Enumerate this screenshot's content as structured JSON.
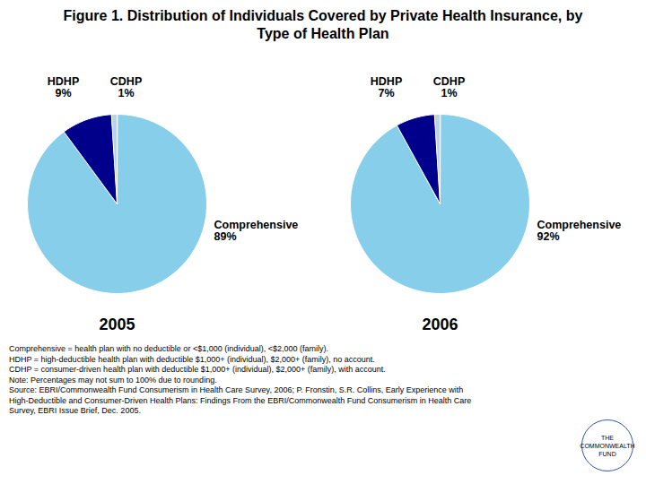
{
  "chart_data": [
    {
      "type": "pie",
      "title": "Figure 1. Distribution of Individuals Covered by Private Health Insurance, by Type of Health Plan",
      "subtitle": "2005",
      "categories": [
        "Comprehensive",
        "HDHP",
        "CDHP"
      ],
      "values": [
        89,
        9,
        1
      ],
      "value_labels": [
        "89%",
        "9%",
        "1%"
      ],
      "colors": [
        "#87CEEB",
        "#00008B",
        "#B8D4E8"
      ],
      "data_labels": true,
      "annotations": [
        "Comprehensive = health plan with no deductible or <$1,000 (individual), <$2,000 (family).",
        "HDHP = high-deductible health plan with deductible $1,000+ (individual), $2,000+ (family), no account.",
        "CDHP = consumer-driven health plan with deductible $1,000+ (individual), $2,000+ (family), with account.",
        "Note: Percentages may not sum to 100% due to rounding.",
        "Source: EBRI/Commonwealth Fund Consumerism in Health Care Survey, 2006; P. Fronstin, S.R. Collins, Early Experience with",
        "High-Deductible and Consumer-Driven Health Plans: Findings From the EBRI/Commonwealth Fund Consumerism in Health Care",
        "Survey, EBRI Issue Brief, Dec. 2005.",
        "THE COMMONWEALTH FUND"
      ]
    },
    {
      "type": "pie",
      "subtitle": "2006",
      "categories": [
        "Comprehensive",
        "HDHP",
        "CDHP"
      ],
      "values": [
        92,
        7,
        1
      ],
      "value_labels": [
        "92%",
        "7%",
        "1%"
      ],
      "colors": [
        "#87CEEB",
        "#00008B",
        "#B8D4E8"
      ],
      "data_labels": true
    }
  ]
}
